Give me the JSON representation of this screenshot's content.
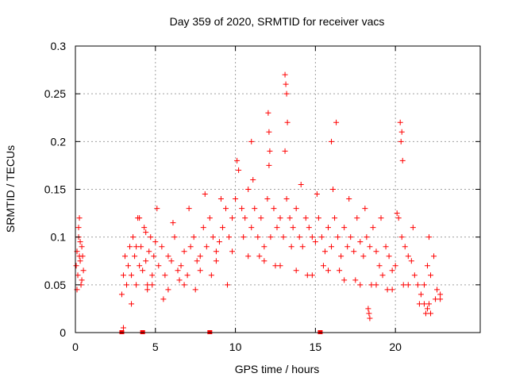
{
  "chart_data": {
    "type": "scatter",
    "title": "Day 359 of 2020, SRMTID for receiver vacs",
    "xlabel": "GPS time / hours",
    "ylabel": "SRMTID / TECUs",
    "xlim": [
      0,
      25.3
    ],
    "ylim": [
      0,
      0.3
    ],
    "xticks": [
      0,
      5,
      10,
      15,
      20
    ],
    "xtick_labels": [
      "0",
      "5",
      "10",
      "15",
      "20"
    ],
    "yticks": [
      0,
      0.05,
      0.1,
      0.15,
      0.2,
      0.25,
      0.3
    ],
    "ytick_labels": [
      "0",
      "0.05",
      "0.1",
      "0.15",
      "0.2",
      "0.25",
      "0.3"
    ],
    "grid": true,
    "marker": "+",
    "color": "#ff0000",
    "series": [
      {
        "name": "SRMTID",
        "x": [
          0.05,
          0.1,
          0.15,
          0.2,
          0.25,
          0.3,
          0.35,
          0.4,
          0.45,
          0.5,
          0.1,
          0.2,
          0.3,
          0.4,
          0.25,
          2.9,
          3.0,
          3.1,
          3.2,
          3.3,
          3.4,
          3.5,
          3.6,
          3.7,
          3.8,
          3.9,
          4.0,
          4.1,
          4.2,
          4.3,
          4.4,
          4.5,
          4.6,
          4.7,
          4.8,
          4.9,
          5.0,
          5.2,
          5.4,
          5.6,
          5.8,
          6.0,
          6.2,
          6.4,
          6.6,
          6.8,
          7.0,
          7.2,
          7.4,
          7.6,
          7.8,
          8.0,
          8.2,
          8.4,
          8.6,
          8.8,
          9.0,
          9.2,
          9.4,
          9.6,
          9.8,
          10.0,
          10.2,
          10.4,
          10.6,
          10.8,
          11.0,
          11.2,
          11.4,
          11.6,
          11.8,
          12.0,
          12.2,
          12.4,
          12.6,
          12.8,
          13.0,
          13.2,
          13.4,
          13.6,
          13.8,
          14.0,
          14.2,
          14.4,
          14.6,
          14.8,
          15.0,
          15.2,
          15.4,
          15.6,
          15.8,
          16.0,
          16.2,
          16.4,
          16.6,
          16.8,
          17.0,
          17.2,
          17.4,
          17.6,
          17.8,
          18.0,
          18.2,
          18.4,
          18.6,
          18.8,
          19.0,
          19.2,
          19.4,
          19.6,
          19.8,
          20.0,
          20.2,
          20.4,
          20.6,
          20.8,
          21.0,
          21.2,
          21.4,
          21.6,
          21.8,
          22.0,
          22.2,
          22.4,
          22.6,
          22.8,
          3.5,
          4.0,
          4.5,
          5.5,
          6.5,
          7.5,
          8.5,
          9.5,
          10.5,
          11.5,
          12.5,
          13.5,
          14.5,
          15.5,
          16.5,
          17.5,
          18.5,
          19.5,
          20.5,
          21.5,
          22.5,
          12.05,
          12.1,
          12.15,
          13.1,
          13.15,
          13.2,
          13.25,
          20.3,
          20.35,
          20.4,
          20.45,
          16.3,
          16.0,
          11.0,
          4.4,
          5.1,
          6.1,
          7.1,
          8.1,
          9.1,
          10.1,
          11.1,
          12.1,
          13.1,
          14.1,
          15.1,
          16.1,
          17.1,
          18.1,
          19.1,
          20.1,
          21.1,
          22.1,
          3.8,
          4.8,
          5.8,
          6.8,
          7.8,
          8.8,
          9.8,
          10.8,
          11.8,
          12.8,
          13.8,
          14.8,
          15.8,
          16.8,
          17.8,
          18.8,
          19.8,
          20.8,
          21.8,
          22.8,
          18.3,
          18.35,
          18.4,
          21.9,
          22.0,
          22.1,
          22.2,
          3.0
        ],
        "y": [
          0.07,
          0.085,
          0.06,
          0.1,
          0.12,
          0.075,
          0.05,
          0.09,
          0.08,
          0.065,
          0.045,
          0.11,
          0.095,
          0.055,
          0.08,
          0.04,
          0.06,
          0.08,
          0.05,
          0.07,
          0.09,
          0.06,
          0.1,
          0.08,
          0.05,
          0.12,
          0.07,
          0.09,
          0.065,
          0.11,
          0.075,
          0.05,
          0.085,
          0.1,
          0.06,
          0.08,
          0.095,
          0.07,
          0.09,
          0.06,
          0.08,
          0.075,
          0.1,
          0.065,
          0.07,
          0.085,
          0.06,
          0.09,
          0.1,
          0.075,
          0.08,
          0.11,
          0.09,
          0.12,
          0.1,
          0.085,
          0.095,
          0.11,
          0.13,
          0.1,
          0.12,
          0.14,
          0.17,
          0.13,
          0.12,
          0.15,
          0.11,
          0.13,
          0.1,
          0.12,
          0.09,
          0.14,
          0.1,
          0.13,
          0.11,
          0.12,
          0.1,
          0.14,
          0.12,
          0.11,
          0.13,
          0.1,
          0.09,
          0.12,
          0.11,
          0.1,
          0.095,
          0.12,
          0.1,
          0.085,
          0.11,
          0.09,
          0.12,
          0.1,
          0.08,
          0.11,
          0.09,
          0.1,
          0.085,
          0.12,
          0.095,
          0.08,
          0.1,
          0.09,
          0.11,
          0.085,
          0.07,
          0.06,
          0.09,
          0.08,
          0.065,
          0.07,
          0.12,
          0.1,
          0.09,
          0.08,
          0.075,
          0.06,
          0.05,
          0.04,
          0.05,
          0.07,
          0.06,
          0.08,
          0.045,
          0.04,
          0.03,
          0.12,
          0.045,
          0.035,
          0.055,
          0.045,
          0.06,
          0.05,
          0.1,
          0.08,
          0.07,
          0.09,
          0.06,
          0.07,
          0.065,
          0.055,
          0.05,
          0.045,
          0.05,
          0.03,
          0.035,
          0.23,
          0.21,
          0.19,
          0.27,
          0.26,
          0.25,
          0.22,
          0.22,
          0.2,
          0.21,
          0.18,
          0.22,
          0.2,
          0.2,
          0.105,
          0.13,
          0.115,
          0.13,
          0.145,
          0.14,
          0.18,
          0.16,
          0.175,
          0.19,
          0.155,
          0.145,
          0.15,
          0.14,
          0.13,
          0.12,
          0.125,
          0.11,
          0.1,
          0.09,
          0.05,
          0.045,
          0.05,
          0.065,
          0.075,
          0.085,
          0.08,
          0.075,
          0.07,
          0.065,
          0.06,
          0.065,
          0.055,
          0.05,
          0.05,
          0.045,
          0.05,
          0.03,
          0.035,
          0.025,
          0.02,
          0.015,
          0.02,
          0.025,
          0.03,
          0.02,
          0.005
        ]
      }
    ],
    "zero_markers": [
      2.9,
      4.2,
      8.4,
      15.3
    ]
  }
}
